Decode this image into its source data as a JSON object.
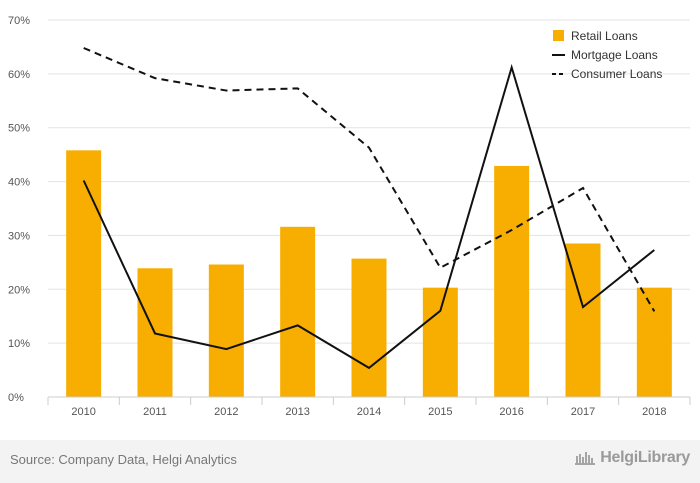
{
  "chart_data": {
    "type": "bar+line",
    "categories": [
      "2010",
      "2011",
      "2012",
      "2013",
      "2014",
      "2015",
      "2016",
      "2017",
      "2018"
    ],
    "series": [
      {
        "name": "Retail Loans",
        "kind": "bar",
        "color": "#f7ae00",
        "values": [
          45.8,
          23.9,
          24.6,
          31.6,
          25.7,
          20.3,
          42.9,
          28.5,
          20.3
        ]
      },
      {
        "name": "Mortgage Loans",
        "kind": "line",
        "style": "solid",
        "color": "#111111",
        "values": [
          40.2,
          11.8,
          8.9,
          13.3,
          5.4,
          16.0,
          61.2,
          16.7,
          27.3
        ]
      },
      {
        "name": "Consumer Loans",
        "kind": "line",
        "style": "dashed",
        "color": "#111111",
        "values": [
          64.8,
          59.2,
          56.9,
          57.3,
          46.3,
          24.0,
          31.0,
          38.8,
          15.9
        ]
      }
    ],
    "yticks": [
      "0%",
      "10%",
      "20%",
      "30%",
      "40%",
      "50%",
      "60%",
      "70%"
    ],
    "ylim": [
      0,
      70
    ],
    "grid": true,
    "legend": "top-right",
    "title": "",
    "xlabel": "",
    "ylabel": ""
  },
  "footer": {
    "source": "Source: Company Data, Helgi Analytics",
    "brand": "HelgiLibrary"
  }
}
